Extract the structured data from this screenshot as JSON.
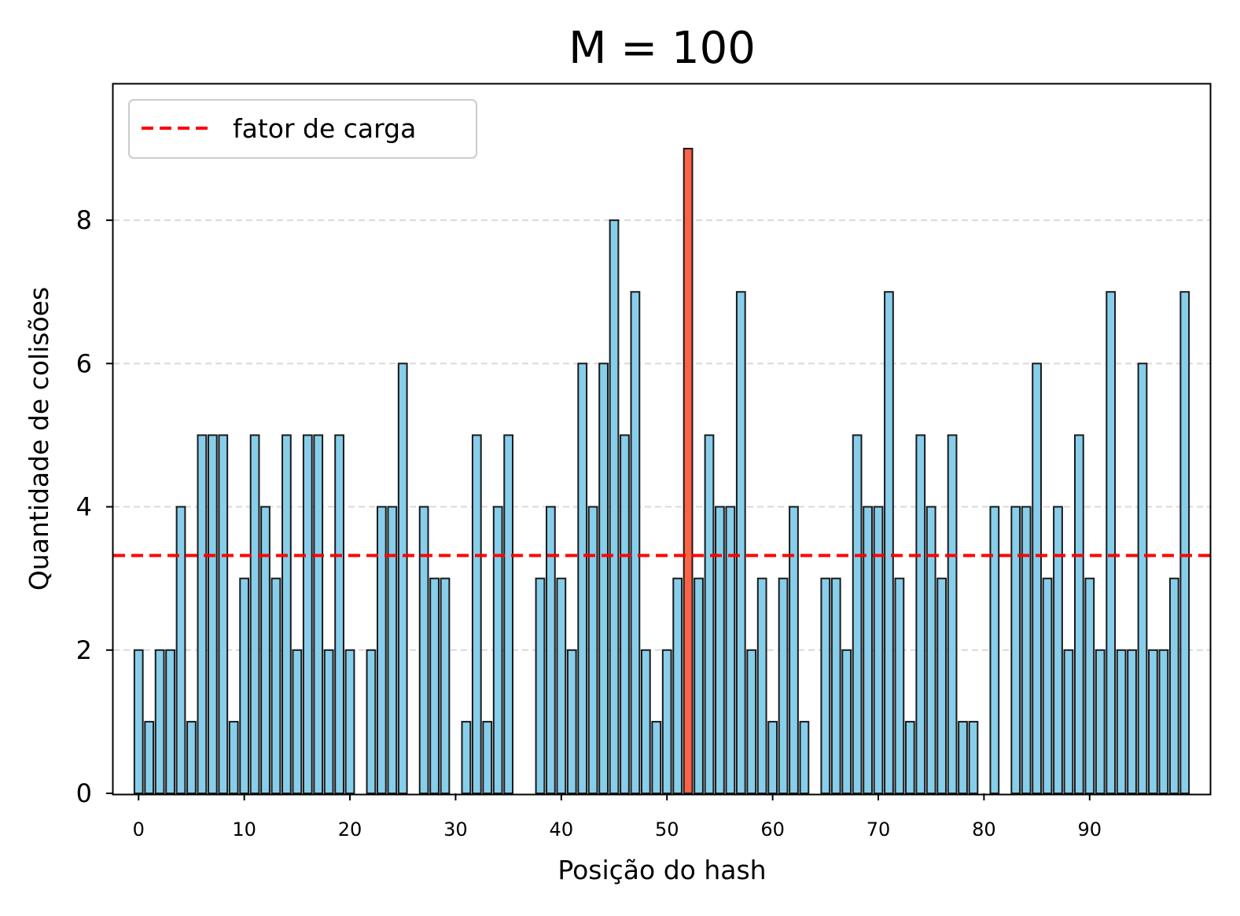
{
  "chart_data": {
    "type": "bar",
    "title": "M = 100",
    "xlabel": "Posição do hash",
    "ylabel": "Quantidade de colisões",
    "x": [
      0,
      1,
      2,
      3,
      4,
      5,
      6,
      7,
      8,
      9,
      10,
      11,
      12,
      13,
      14,
      15,
      16,
      17,
      18,
      19,
      20,
      21,
      22,
      23,
      24,
      25,
      26,
      27,
      28,
      29,
      30,
      31,
      32,
      33,
      34,
      35,
      36,
      37,
      38,
      39,
      40,
      41,
      42,
      43,
      44,
      45,
      46,
      47,
      48,
      49,
      50,
      51,
      52,
      53,
      54,
      55,
      56,
      57,
      58,
      59,
      60,
      61,
      62,
      63,
      64,
      65,
      66,
      67,
      68,
      69,
      70,
      71,
      72,
      73,
      74,
      75,
      76,
      77,
      78,
      79,
      80,
      81,
      82,
      83,
      84,
      85,
      86,
      87,
      88,
      89,
      90,
      91,
      92,
      93,
      94,
      95,
      96,
      97,
      98,
      99
    ],
    "values": [
      2,
      1,
      2,
      2,
      4,
      1,
      5,
      5,
      5,
      1,
      3,
      5,
      4,
      3,
      5,
      2,
      5,
      5,
      2,
      5,
      2,
      0,
      2,
      4,
      4,
      6,
      0,
      4,
      3,
      3,
      0,
      1,
      5,
      1,
      4,
      5,
      0,
      0,
      3,
      4,
      3,
      2,
      6,
      4,
      6,
      8,
      5,
      7,
      2,
      1,
      2,
      3,
      9,
      3,
      5,
      4,
      4,
      7,
      2,
      3,
      1,
      3,
      4,
      1,
      0,
      3,
      3,
      2,
      5,
      4,
      4,
      7,
      3,
      1,
      5,
      4,
      3,
      5,
      1,
      1,
      0,
      4,
      0,
      4,
      4,
      6,
      3,
      4,
      2,
      5,
      3,
      2,
      7,
      2,
      2,
      6,
      2,
      2,
      3,
      7
    ],
    "highlight_index": 52,
    "xticks": [
      0,
      10,
      20,
      30,
      40,
      50,
      60,
      70,
      80,
      90
    ],
    "yticks": [
      0,
      2,
      4,
      6,
      8
    ],
    "xlim": [
      -2.4,
      101.4
    ],
    "ylim": [
      0,
      9.9
    ],
    "grid": "y-dashed",
    "load_factor": 3.32,
    "legend": {
      "label": "fator de carga",
      "position": "top-left"
    },
    "colors": {
      "bar": "#87ceeb",
      "highlight": "#ff6347",
      "edge": "#1a1a1a",
      "load_line": "#ff0000",
      "grid": "#d9d9d9"
    }
  }
}
